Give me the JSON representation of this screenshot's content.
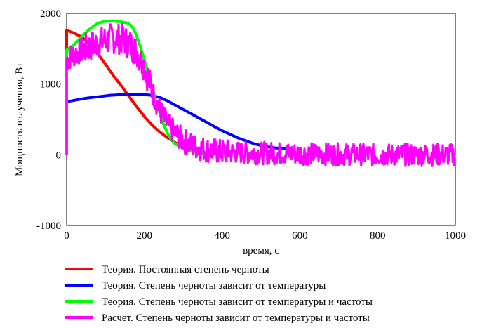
{
  "chart_data": {
    "type": "line",
    "xlabel": "время, с",
    "ylabel": "Мощность излучения, Вт",
    "xlim": [
      0,
      1000
    ],
    "ylim": [
      -1000,
      2000
    ],
    "xticks": [
      "0",
      "200",
      "400",
      "600",
      "800",
      "1000"
    ],
    "yticks": [
      "2000",
      "1000",
      "0",
      "-1000"
    ],
    "grid": false,
    "legend_position": "bottom",
    "series": [
      {
        "name": "Теория. Постоянная степень черноты",
        "color": "#ff0000",
        "x": [
          0,
          20,
          40,
          60,
          80,
          100,
          120,
          140,
          160,
          180,
          200,
          220,
          240,
          260,
          280,
          300,
          320,
          340,
          360
        ],
        "y": [
          1760,
          1720,
          1660,
          1560,
          1430,
          1280,
          1120,
          980,
          830,
          680,
          540,
          420,
          320,
          240,
          170,
          110,
          70,
          40,
          20
        ]
      },
      {
        "name": "Теория. Степень черноты зависит от температуры",
        "color": "#0000ff",
        "x": [
          0,
          20,
          50,
          80,
          110,
          140,
          170,
          200,
          220,
          240,
          260,
          280,
          300,
          320,
          340,
          360,
          380,
          400,
          420,
          440,
          460,
          480,
          500,
          520,
          540,
          560,
          580
        ],
        "y": [
          750,
          770,
          800,
          820,
          840,
          850,
          855,
          850,
          840,
          810,
          760,
          700,
          640,
          580,
          520,
          460,
          400,
          340,
          290,
          240,
          200,
          160,
          130,
          110,
          95,
          90,
          85
        ]
      },
      {
        "name": "Теория. Степень черноты зависит от температуры и частоты",
        "color": "#00ff00",
        "x": [
          0,
          20,
          40,
          60,
          80,
          100,
          120,
          140,
          160,
          170,
          180,
          190,
          200,
          210,
          220,
          230,
          240,
          250,
          260,
          270,
          280,
          300,
          320,
          340,
          360,
          380
        ],
        "y": [
          1480,
          1560,
          1680,
          1780,
          1860,
          1890,
          1890,
          1880,
          1860,
          1800,
          1680,
          1520,
          1340,
          1150,
          950,
          760,
          580,
          420,
          300,
          210,
          150,
          90,
          50,
          25,
          10,
          0
        ]
      },
      {
        "name": "Расчет.  Степень черноты зависит от температуры и частоты",
        "color": "#ff00ff",
        "x": [
          0,
          20,
          40,
          60,
          80,
          100,
          120,
          140,
          160,
          180,
          200,
          220,
          240,
          260,
          280,
          300,
          320,
          340,
          360,
          380,
          400,
          450,
          500,
          550,
          600,
          650,
          700,
          750,
          800,
          850,
          900,
          950,
          1000
        ],
        "y": [
          1350,
          1420,
          1480,
          1530,
          1580,
          1620,
          1650,
          1640,
          1580,
          1460,
          1250,
          900,
          620,
          420,
          300,
          200,
          140,
          100,
          70,
          55,
          40,
          30,
          25,
          20,
          15,
          10,
          5,
          5,
          0,
          0,
          0,
          0,
          0
        ]
      }
    ]
  }
}
